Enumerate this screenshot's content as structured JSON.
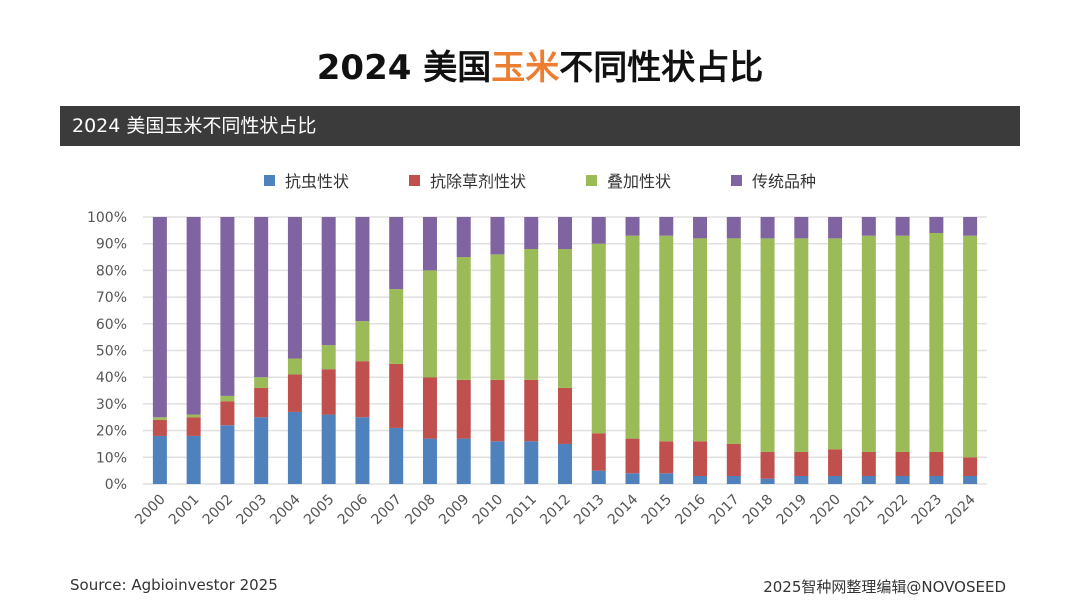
{
  "title": {
    "pre": "2024 美国",
    "highlight": "玉米",
    "post": "不同性状占比",
    "highlight_color": "#ed7d31"
  },
  "subtitle": "2024 美国玉米不同性状占比",
  "source": "Source: Agbioinvestor 2025",
  "credit": "2025智种网整理编辑@NOVOSEED",
  "chart_data": {
    "type": "bar",
    "stacked": true,
    "grid": true,
    "legend": "top",
    "ylim": [
      0,
      100
    ],
    "yticks": [
      "0%",
      "10%",
      "20%",
      "30%",
      "40%",
      "50%",
      "60%",
      "70%",
      "80%",
      "90%",
      "100%"
    ],
    "categories": [
      "2000",
      "2001",
      "2002",
      "2003",
      "2004",
      "2005",
      "2006",
      "2007",
      "2008",
      "2009",
      "2010",
      "2011",
      "2012",
      "2013",
      "2014",
      "2015",
      "2016",
      "2017",
      "2018",
      "2019",
      "2020",
      "2021",
      "2022",
      "2023",
      "2024"
    ],
    "series": [
      {
        "name": "抗虫性状",
        "color": "#4f81bd",
        "values": [
          18,
          18,
          22,
          25,
          27,
          26,
          25,
          21,
          17,
          17,
          16,
          16,
          15,
          5,
          4,
          4,
          3,
          3,
          2,
          3,
          3,
          3,
          3,
          3,
          3
        ]
      },
      {
        "name": "抗除草剂性状",
        "color": "#c0504d",
        "values": [
          6,
          7,
          9,
          11,
          14,
          17,
          21,
          24,
          23,
          22,
          23,
          23,
          21,
          14,
          13,
          12,
          13,
          12,
          10,
          9,
          10,
          9,
          9,
          9,
          7
        ]
      },
      {
        "name": "叠加性状",
        "color": "#9bbb59",
        "values": [
          1,
          1,
          2,
          4,
          6,
          9,
          15,
          28,
          40,
          46,
          47,
          49,
          52,
          71,
          76,
          77,
          76,
          77,
          80,
          80,
          79,
          81,
          81,
          82,
          83
        ]
      },
      {
        "name": "传统品种",
        "color": "#8064a2",
        "values": [
          75,
          74,
          67,
          60,
          53,
          48,
          39,
          27,
          20,
          15,
          14,
          12,
          12,
          10,
          7,
          7,
          8,
          8,
          8,
          8,
          8,
          7,
          7,
          6,
          7
        ]
      }
    ]
  }
}
